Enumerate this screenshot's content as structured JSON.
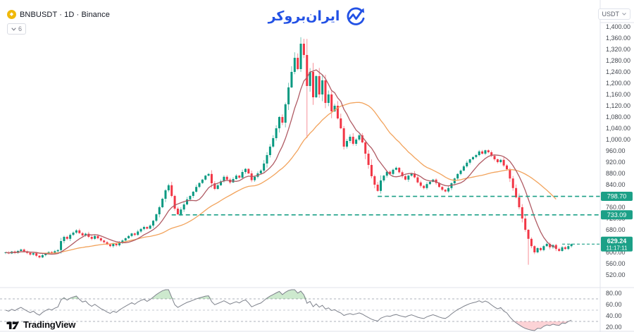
{
  "header": {
    "symbol_title": "BNBUSDT · 1D · Binance",
    "collapsed_indicators_count": "6",
    "broker_logo_text": "ایران‌بروکر",
    "price_scale_currency": "USDT"
  },
  "footer": {
    "tradingview_label": "TradingView"
  },
  "colors": {
    "up": "#089981",
    "down": "#f23645",
    "ma_fast": "#b05b64",
    "ma_slow": "#f2a35c",
    "level": "#1ca087",
    "badge_bg": "#1ca087",
    "badge_text": "#ffffff",
    "rsi_line": "#7e828c",
    "rsi_band": "#a9adb8",
    "overbought_fill": "rgba(76,175,80,0.28)",
    "oversold_fill": "rgba(242,54,69,0.22)",
    "axis_text": "#42464e",
    "separator": "#e0e3eb",
    "brand_blue": "#2251e5",
    "coin_gold": "#f0b90b"
  },
  "chart_data": {
    "type": "candlestick",
    "title": "BNBUSDT · 1D · Binance",
    "symbol": "BNBUSDT",
    "interval": "1D",
    "exchange": "Binance",
    "price_axis": {
      "currency": "USDT",
      "ticks": [
        1400,
        1360,
        1320,
        1280,
        1240,
        1200,
        1160,
        1120,
        1080,
        1040,
        1000,
        960,
        920,
        880,
        840,
        800,
        760,
        720,
        680,
        640,
        600,
        560,
        520
      ],
      "ylim": [
        475,
        1445
      ]
    },
    "candles": {
      "first_open": 598,
      "closes": [
        600,
        596,
        603,
        598,
        605,
        610,
        604,
        598,
        592,
        597,
        588,
        582,
        590,
        596,
        601,
        598,
        604,
        608,
        640,
        655,
        648,
        662,
        670,
        678,
        668,
        660,
        666,
        655,
        648,
        658,
        650,
        642,
        636,
        628,
        622,
        630,
        625,
        634,
        642,
        650,
        658,
        667,
        662,
        674,
        683,
        690,
        684,
        695,
        712,
        735,
        760,
        790,
        820,
        838,
        800,
        755,
        735,
        752,
        770,
        788,
        800,
        815,
        832,
        846,
        858,
        872,
        878,
        845,
        825,
        838,
        852,
        868,
        858,
        848,
        860,
        872,
        865,
        885,
        896,
        880,
        856,
        868,
        880,
        890,
        915,
        945,
        975,
        1005,
        1040,
        1080,
        1060,
        1125,
        1185,
        1240,
        1290,
        1250,
        1340,
        1300,
        1190,
        1240,
        1150,
        1225,
        1160,
        1210,
        1130,
        1160,
        1100,
        1120,
        1075,
        1040,
        975,
        995,
        1010,
        985,
        1000,
        1015,
        990,
        950,
        910,
        870,
        840,
        818,
        855,
        872,
        886,
        878,
        893,
        900,
        884,
        870,
        858,
        872,
        880,
        866,
        848,
        836,
        828,
        842,
        850,
        858,
        846,
        832,
        822,
        816,
        828,
        845,
        862,
        878,
        890,
        905,
        918,
        930,
        938,
        945,
        958,
        950,
        962,
        955,
        942,
        930,
        920,
        928,
        908,
        895,
        862,
        828,
        795,
        760,
        720,
        680,
        648,
        622,
        600,
        615,
        608,
        622,
        630,
        618,
        626,
        612,
        605,
        618,
        612,
        622,
        629.24
      ],
      "wick_overrides": [
        [
          56,
          null,
          733.09
        ],
        [
          96,
          1363,
          null
        ],
        [
          98,
          1357,
          1005
        ],
        [
          170,
          null,
          556
        ]
      ]
    },
    "moving_averages": [
      {
        "name": "ma-fast",
        "period": 9,
        "color": "#b05b64",
        "end_index": 179
      },
      {
        "name": "ma-slow",
        "period": 28,
        "color": "#f2a35c",
        "end_index": 179
      }
    ],
    "levels": [
      {
        "price": 798.7,
        "label": "798.70",
        "start_index": 121
      },
      {
        "price": 733.09,
        "label": "733.09",
        "start_index": 54
      }
    ],
    "last_price": {
      "value": 629.24,
      "label": "629.24",
      "countdown": "11:17:11"
    },
    "rsi": {
      "period": 14,
      "bands": [
        70,
        50,
        30
      ],
      "ticks": [
        80,
        60,
        40,
        20
      ],
      "ylim": [
        12.5,
        87.5
      ]
    },
    "legend_position": "none",
    "grid": "off"
  }
}
